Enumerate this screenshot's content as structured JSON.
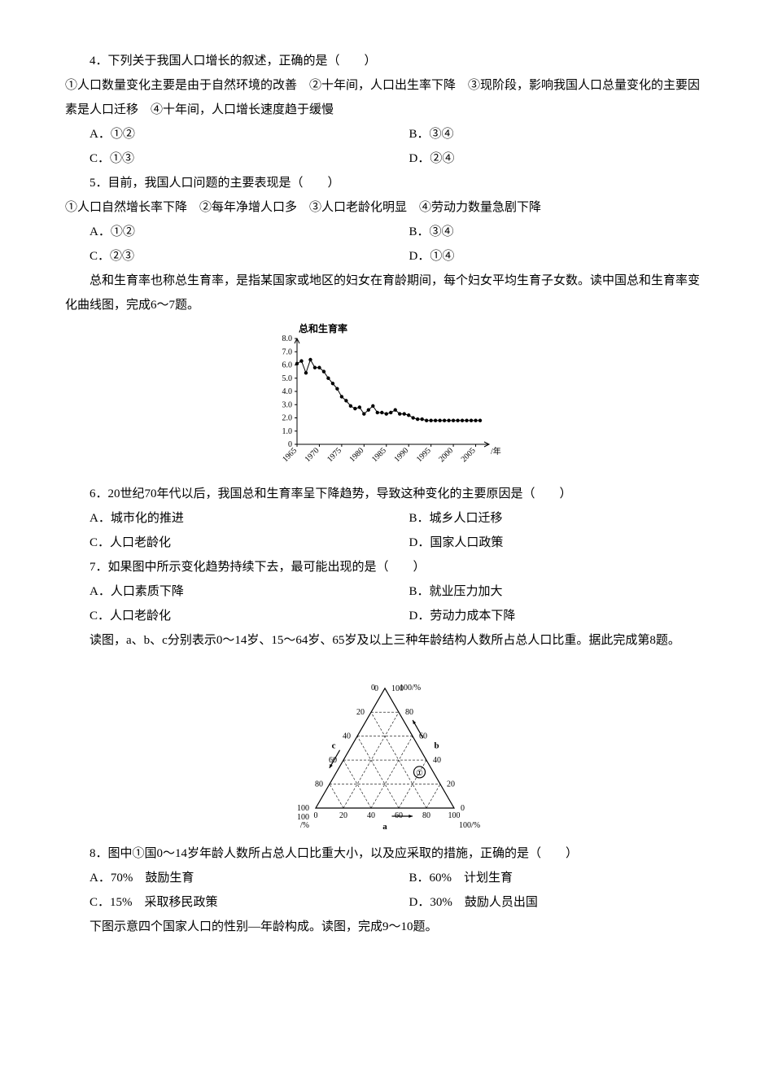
{
  "q4": {
    "stem": "4．下列关于我国人口增长的叙述，正确的是（　　）",
    "statements": "①人口数量变化主要是由于自然环境的改善　②十年间，人口出生率下降　③现阶段，影响我国人口总量变化的主要因素是人口迁移　④十年间，人口增长速度趋于缓慢",
    "A": "A．①②",
    "B": "B．③④",
    "C": "C．①③",
    "D": "D．②④"
  },
  "q5": {
    "stem": "5．目前，我国人口问题的主要表现是（　　）",
    "statements": "①人口自然增长率下降　②每年净增人口多　③人口老龄化明显　④劳动力数量急剧下降",
    "A": "A．①②",
    "B": "B．③④",
    "C": "C．②③",
    "D": "D．①④"
  },
  "passage67": "　　总和生育率也称总生育率，是指某国家或地区的妇女在育龄期间，每个妇女平均生育子女数。读中国总和生育率变化曲线图，完成6～7题。",
  "chart1": {
    "title": "总和生育率",
    "y_ticks": [
      "8.0",
      "7.0",
      "6.0",
      "5.0",
      "4.0",
      "3.0",
      "2.0",
      "1.0",
      "0"
    ],
    "x_ticks": [
      "1965",
      "1970",
      "1975",
      "1980",
      "1985",
      "1990",
      "1995",
      "2000",
      "2005"
    ],
    "x_axis_label": "/年",
    "series": [
      {
        "x": 1965,
        "y": 6.1
      },
      {
        "x": 1966,
        "y": 6.3
      },
      {
        "x": 1967,
        "y": 5.4
      },
      {
        "x": 1968,
        "y": 6.4
      },
      {
        "x": 1969,
        "y": 5.8
      },
      {
        "x": 1970,
        "y": 5.8
      },
      {
        "x": 1971,
        "y": 5.5
      },
      {
        "x": 1972,
        "y": 5.0
      },
      {
        "x": 1973,
        "y": 4.6
      },
      {
        "x": 1974,
        "y": 4.2
      },
      {
        "x": 1975,
        "y": 3.6
      },
      {
        "x": 1976,
        "y": 3.3
      },
      {
        "x": 1977,
        "y": 2.9
      },
      {
        "x": 1978,
        "y": 2.7
      },
      {
        "x": 1979,
        "y": 2.8
      },
      {
        "x": 1980,
        "y": 2.3
      },
      {
        "x": 1981,
        "y": 2.6
      },
      {
        "x": 1982,
        "y": 2.9
      },
      {
        "x": 1983,
        "y": 2.4
      },
      {
        "x": 1984,
        "y": 2.4
      },
      {
        "x": 1985,
        "y": 2.3
      },
      {
        "x": 1986,
        "y": 2.4
      },
      {
        "x": 1987,
        "y": 2.6
      },
      {
        "x": 1988,
        "y": 2.3
      },
      {
        "x": 1989,
        "y": 2.3
      },
      {
        "x": 1990,
        "y": 2.2
      },
      {
        "x": 1991,
        "y": 2.0
      },
      {
        "x": 1992,
        "y": 1.9
      },
      {
        "x": 1993,
        "y": 1.9
      },
      {
        "x": 1994,
        "y": 1.8
      },
      {
        "x": 1995,
        "y": 1.8
      },
      {
        "x": 1996,
        "y": 1.8
      },
      {
        "x": 1997,
        "y": 1.8
      },
      {
        "x": 1998,
        "y": 1.8
      },
      {
        "x": 1999,
        "y": 1.8
      },
      {
        "x": 2000,
        "y": 1.8
      },
      {
        "x": 2001,
        "y": 1.8
      },
      {
        "x": 2002,
        "y": 1.8
      },
      {
        "x": 2003,
        "y": 1.8
      },
      {
        "x": 2004,
        "y": 1.8
      },
      {
        "x": 2005,
        "y": 1.8
      },
      {
        "x": 2006,
        "y": 1.8
      }
    ],
    "line_color": "#000000",
    "marker_size": 2.2,
    "xlim": [
      1965,
      2008
    ],
    "ylim": [
      0,
      8
    ]
  },
  "q6": {
    "stem": "6．20世纪70年代以后，我国总和生育率呈下降趋势，导致这种变化的主要原因是（　　）",
    "A": "A．城市化的推进",
    "B": "B．城乡人口迁移",
    "C": "C．人口老龄化",
    "D": "D．国家人口政策"
  },
  "q7": {
    "stem": "7．如果图中所示变化趋势持续下去，最可能出现的是（　　）",
    "A": "A．人口素质下降",
    "B": "B．就业压力加大",
    "C": "C．人口老龄化",
    "D": "D．劳动力成本下降"
  },
  "passage8": "　　读图，a、b、c分别表示0～14岁、15～64岁、65岁及以上三种年龄结构人数所占总人口比重。据此完成第8题。",
  "chart2": {
    "side_labels": [
      "0",
      "20",
      "40",
      "60",
      "80",
      "100"
    ],
    "corner_top": "0",
    "top_right_pct": "100/%",
    "bottom_left_pct": "100\n/%",
    "bottom_right_pct": "100/%",
    "axis_a": "a",
    "axis_b": "b",
    "axis_c": "c",
    "circle_label": "①",
    "grid_color": "#000000",
    "point": {
      "a": 60,
      "b": 30,
      "c": 10
    }
  },
  "q8": {
    "stem": "8．图中①国0～14岁年龄人数所占总人口比重大小，以及应采取的措施，正确的是（　　）",
    "A": "A．70%　鼓励生育",
    "B": "B．60%　计划生育",
    "C": "C．15%　采取移民政策",
    "D": "D．30%　鼓励人员出国"
  },
  "passage910": "　　下图示意四个国家人口的性别—年龄构成。读图，完成9～10题。"
}
